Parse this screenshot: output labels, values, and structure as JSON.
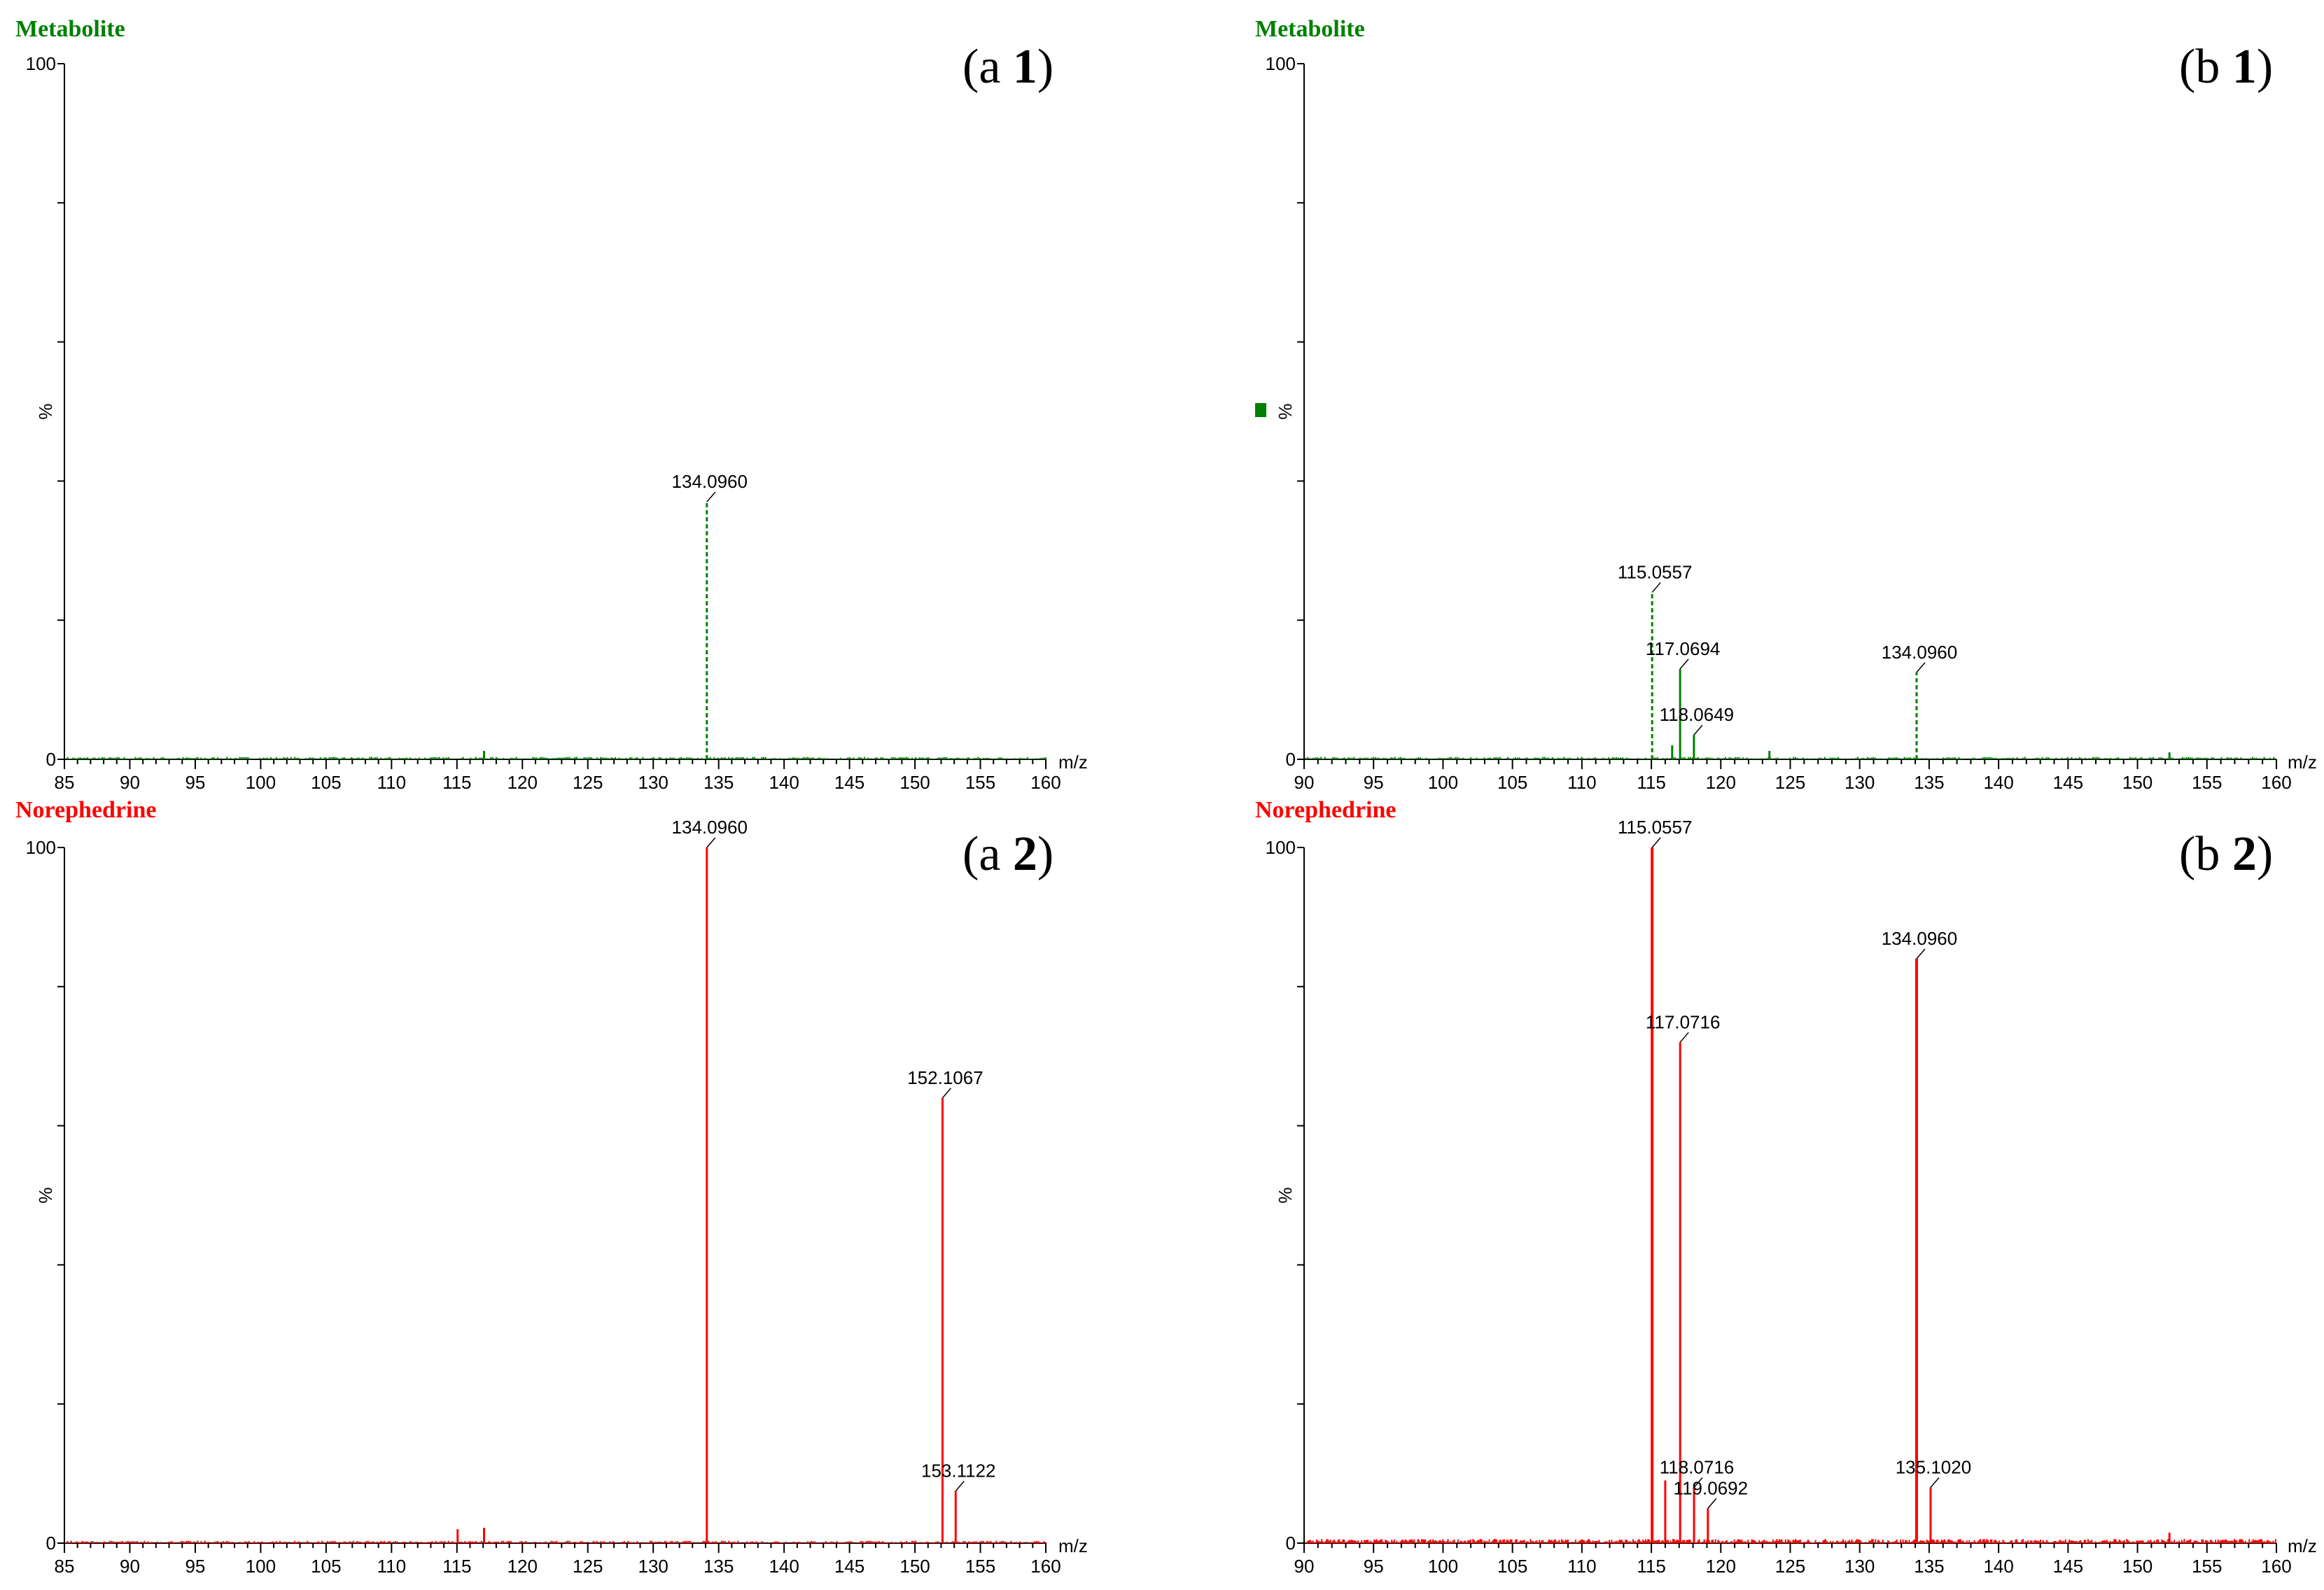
{
  "colors": {
    "metabolite": "#008000",
    "norephedrine": "#ff0000",
    "axis": "#000000"
  },
  "chart_data": [
    {
      "id": "a1",
      "type": "bar",
      "title": "Metabolite",
      "panel_label": [
        "a",
        "1"
      ],
      "color": "#008000",
      "xlabel": "m/z",
      "ylabel": "%",
      "xlim": [
        85,
        160
      ],
      "ylim": [
        0,
        100
      ],
      "xticks": [
        85,
        90,
        95,
        100,
        105,
        110,
        115,
        120,
        125,
        130,
        135,
        140,
        145,
        150,
        155,
        160
      ],
      "yticks": [
        0,
        100
      ],
      "peaks": [
        {
          "x": 117.07,
          "y": 1.2,
          "label": ""
        },
        {
          "x": 134.096,
          "y": 37,
          "label": "134.0960",
          "dashed": true
        }
      ]
    },
    {
      "id": "b1",
      "type": "bar",
      "title": "Metabolite",
      "panel_label": [
        "b",
        "1"
      ],
      "color": "#008000",
      "xlabel": "m/z",
      "ylabel": "%",
      "xlim": [
        90,
        160
      ],
      "ylim": [
        0,
        100
      ],
      "xticks": [
        90,
        95,
        100,
        105,
        110,
        115,
        120,
        125,
        130,
        135,
        140,
        145,
        150,
        155,
        160
      ],
      "yticks": [
        0,
        100
      ],
      "peaks": [
        {
          "x": 115.0557,
          "y": 24,
          "label": "115.0557",
          "dashed": true
        },
        {
          "x": 116.5,
          "y": 2,
          "label": ""
        },
        {
          "x": 117.0694,
          "y": 13,
          "label": "117.0694"
        },
        {
          "x": 118.0649,
          "y": 3.5,
          "label": "118.0649"
        },
        {
          "x": 123.5,
          "y": 1.2,
          "label": ""
        },
        {
          "x": 134.096,
          "y": 12.5,
          "label": "134.0960",
          "dashed": true
        },
        {
          "x": 152.3,
          "y": 1,
          "label": ""
        }
      ]
    },
    {
      "id": "a2",
      "type": "bar",
      "title": "Norephedrine",
      "panel_label": [
        "a",
        "2"
      ],
      "color": "#ff0000",
      "xlabel": "m/z",
      "ylabel": "%",
      "xlim": [
        85,
        160
      ],
      "ylim": [
        0,
        100
      ],
      "xticks": [
        85,
        90,
        95,
        100,
        105,
        110,
        115,
        120,
        125,
        130,
        135,
        140,
        145,
        150,
        155,
        160
      ],
      "yticks": [
        0,
        100
      ],
      "peaks": [
        {
          "x": 115.05,
          "y": 2,
          "label": ""
        },
        {
          "x": 117.07,
          "y": 2.2,
          "label": ""
        },
        {
          "x": 134.096,
          "y": 100,
          "label": "134.0960"
        },
        {
          "x": 152.1067,
          "y": 64,
          "label": "152.1067"
        },
        {
          "x": 153.1122,
          "y": 7.5,
          "label": "153.1122"
        }
      ]
    },
    {
      "id": "b2",
      "type": "bar",
      "title": "Norephedrine",
      "panel_label": [
        "b",
        "2"
      ],
      "color": "#ff0000",
      "xlabel": "m/z",
      "ylabel": "%",
      "xlim": [
        90,
        160
      ],
      "ylim": [
        0,
        100
      ],
      "xticks": [
        90,
        95,
        100,
        105,
        110,
        115,
        120,
        125,
        130,
        135,
        140,
        145,
        150,
        155,
        160
      ],
      "yticks": [
        0,
        100
      ],
      "peaks": [
        {
          "x": 115.0557,
          "y": 100,
          "label": "115.0557"
        },
        {
          "x": 116.0,
          "y": 9,
          "label": ""
        },
        {
          "x": 117.0716,
          "y": 72,
          "label": "117.0716"
        },
        {
          "x": 118.0716,
          "y": 8,
          "label": "118.0716"
        },
        {
          "x": 119.0692,
          "y": 5,
          "label": "119.0692"
        },
        {
          "x": 134.096,
          "y": 84,
          "label": "134.0960"
        },
        {
          "x": 135.102,
          "y": 8,
          "label": "135.1020"
        },
        {
          "x": 152.3,
          "y": 1.5,
          "label": ""
        }
      ]
    }
  ]
}
